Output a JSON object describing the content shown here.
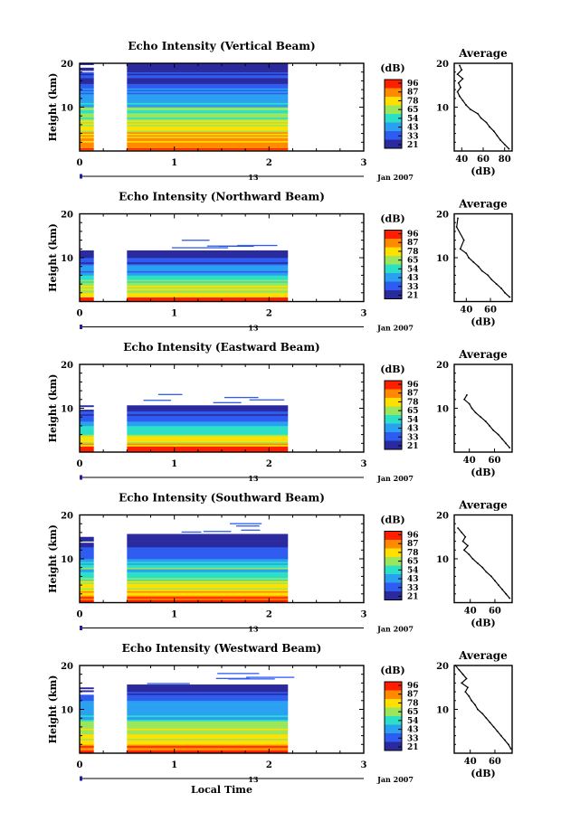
{
  "figure": {
    "xlabel": "Local Time",
    "date_left": "13",
    "date_right": "Jan 2007"
  },
  "colorbar": {
    "unit": "(dB)",
    "ticks": [
      96,
      87,
      78,
      65,
      54,
      43,
      33,
      21
    ],
    "colors": [
      "#ff1f00",
      "#ff8a00",
      "#ffe000",
      "#9be65a",
      "#2ce0c8",
      "#2aa0f0",
      "#2f5cf0",
      "#2a2a9e"
    ]
  },
  "chart_data": [
    {
      "type": "heatmap",
      "title": "Echo Intensity (Vertical Beam)",
      "ylabel": "Height (km)",
      "xlim": [
        0,
        3
      ],
      "ylim": [
        0,
        20
      ],
      "xticks": [
        0,
        1,
        2,
        3
      ],
      "yticks": [
        10,
        20
      ],
      "data_extent_km": 19.8,
      "gap": [
        0.15,
        0.5
      ],
      "data_end": 2.2,
      "profile": {
        "title": "Average",
        "xlabel": "(dB)",
        "xticks": [
          40,
          60,
          80
        ],
        "xlim": [
          33,
          87
        ],
        "ylim": [
          0,
          20
        ],
        "yticks": [
          10,
          20
        ],
        "height_km": [
          19.5,
          18.5,
          17.5,
          16.5,
          15.5,
          14.5,
          13.5,
          12.5,
          11.5,
          10.5,
          9.5,
          8.5,
          7.5,
          6.5,
          5.5,
          4.5,
          3.5,
          2.5,
          1.5,
          0.5
        ],
        "mean_db": [
          38,
          40,
          36,
          41,
          37,
          39,
          36,
          38,
          41,
          44,
          48,
          55,
          58,
          63,
          66,
          70,
          73,
          76,
          80,
          84
        ]
      }
    },
    {
      "type": "heatmap",
      "title": "Echo Intensity (Northward Beam)",
      "ylabel": "Height (km)",
      "xlim": [
        0,
        3
      ],
      "ylim": [
        0,
        20
      ],
      "xticks": [
        0,
        1,
        2,
        3
      ],
      "yticks": [
        10,
        20
      ],
      "data_extent_km": 11.5,
      "gap": [
        0.15,
        0.5
      ],
      "data_end": 2.2,
      "profile": {
        "title": "Average",
        "xlabel": "(dB)",
        "xticks": [
          40,
          60
        ],
        "xlim": [
          30,
          78
        ],
        "ylim": [
          0,
          20
        ],
        "yticks": [
          10,
          20
        ],
        "height_km": [
          19,
          17,
          14,
          12,
          11,
          10,
          9,
          8,
          7,
          6,
          5,
          4,
          3,
          2,
          1
        ],
        "mean_db": [
          33,
          32,
          38,
          35,
          40,
          42,
          46,
          50,
          53,
          58,
          61,
          65,
          69,
          72,
          76
        ]
      }
    },
    {
      "type": "heatmap",
      "title": "Echo Intensity (Eastward Beam)",
      "ylabel": "Height (km)",
      "xlim": [
        0,
        3
      ],
      "ylim": [
        0,
        20
      ],
      "xticks": [
        0,
        1,
        2,
        3
      ],
      "yticks": [
        10,
        20
      ],
      "data_extent_km": 10.5,
      "gap": [
        0.15,
        0.5
      ],
      "data_end": 2.2,
      "profile": {
        "title": "Average",
        "xlabel": "(dB)",
        "xticks": [
          40,
          60
        ],
        "xlim": [
          28,
          74
        ],
        "ylim": [
          0,
          20
        ],
        "yticks": [
          10,
          20
        ],
        "height_km": [
          13,
          12,
          11,
          10,
          9,
          8,
          7,
          6,
          5,
          4,
          3,
          2,
          1
        ],
        "mean_db": [
          38,
          36,
          40,
          42,
          45,
          49,
          53,
          56,
          59,
          63,
          66,
          69,
          72
        ]
      }
    },
    {
      "type": "heatmap",
      "title": "Echo Intensity (Southward Beam)",
      "ylabel": "Height (km)",
      "xlim": [
        0,
        3
      ],
      "ylim": [
        0,
        20
      ],
      "xticks": [
        0,
        1,
        2,
        3
      ],
      "yticks": [
        10,
        20
      ],
      "data_extent_km": 15.5,
      "gap": [
        0.15,
        0.5
      ],
      "data_end": 2.2,
      "profile": {
        "title": "Average",
        "xlabel": "(dB)",
        "xticks": [
          40,
          60
        ],
        "xlim": [
          27,
          74
        ],
        "ylim": [
          0,
          20
        ],
        "yticks": [
          10,
          20
        ],
        "height_km": [
          17,
          16,
          15,
          14,
          13,
          12,
          11,
          10,
          9,
          8,
          7,
          6,
          5,
          4,
          3,
          2,
          1
        ],
        "mean_db": [
          30,
          33,
          36,
          34,
          38,
          35,
          39,
          42,
          46,
          50,
          53,
          57,
          60,
          63,
          66,
          69,
          72
        ]
      }
    },
    {
      "type": "heatmap",
      "title": "Echo Intensity (Westward Beam)",
      "ylabel": "Height (km)",
      "xlim": [
        0,
        3
      ],
      "ylim": [
        0,
        20
      ],
      "xticks": [
        0,
        1,
        2,
        3
      ],
      "yticks": [
        10,
        20
      ],
      "data_extent_km": 15.5,
      "gap": [
        0.15,
        0.5
      ],
      "data_end": 2.2,
      "profile": {
        "title": "Average",
        "xlabel": "(dB)",
        "xticks": [
          40,
          60
        ],
        "xlim": [
          27,
          74
        ],
        "ylim": [
          0,
          20
        ],
        "yticks": [
          10,
          20
        ],
        "height_km": [
          20,
          19,
          18,
          17,
          16,
          15,
          14,
          13,
          12,
          11,
          10,
          9,
          8,
          7,
          6,
          5,
          4,
          3,
          2,
          1
        ],
        "mean_db": [
          28,
          31,
          34,
          37,
          33,
          38,
          36,
          39,
          41,
          44,
          46,
          50,
          53,
          56,
          59,
          62,
          65,
          68,
          71,
          73
        ]
      }
    }
  ]
}
